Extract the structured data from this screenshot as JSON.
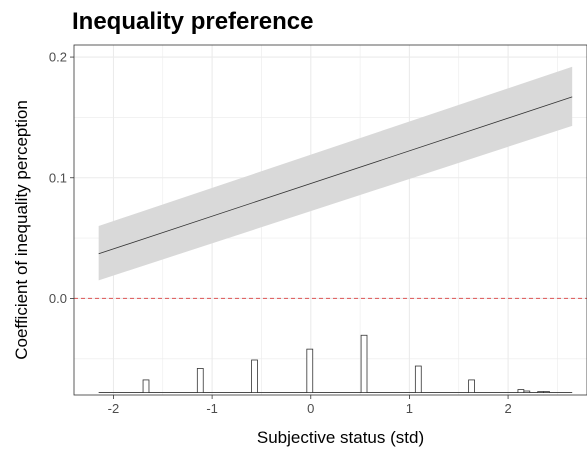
{
  "chart_data": {
    "type": "line",
    "title": "Inequality preference",
    "xlabel": "Subjective status (std)",
    "ylabel": "Coefficient of inequality perception",
    "xlim": [
      -2.4,
      2.8
    ],
    "ylim": [
      -0.08,
      0.21
    ],
    "x_ticks": [
      -2,
      -1,
      0,
      1,
      2
    ],
    "y_ticks": [
      0.0,
      0.1,
      0.2
    ],
    "x_tick_labels": [
      "-2",
      "-1",
      "0",
      "1",
      "2"
    ],
    "y_tick_labels": [
      "0.0",
      "0.1",
      "0.2"
    ],
    "grid": true,
    "series": [
      {
        "x": [
          -2.15,
          2.65
        ],
        "y": [
          0.037,
          0.167
        ],
        "ci_lower": [
          0.015,
          0.143
        ],
        "ci_upper": [
          0.06,
          0.192
        ]
      }
    ],
    "reference_line": {
      "y": 0.0,
      "style": "dashed",
      "color": "#e06666"
    },
    "histogram": {
      "baseline": -0.078,
      "bar_width": 0.06,
      "bars": [
        {
          "x": -1.67,
          "height": 0.0105
        },
        {
          "x": -1.12,
          "height": 0.02
        },
        {
          "x": -0.57,
          "height": 0.027
        },
        {
          "x": -0.01,
          "height": 0.036
        },
        {
          "x": 0.54,
          "height": 0.0475
        },
        {
          "x": 1.09,
          "height": 0.022
        },
        {
          "x": 1.63,
          "height": 0.0105
        },
        {
          "x": 2.13,
          "height": 0.0025
        },
        {
          "x": 2.19,
          "height": 0.0013
        },
        {
          "x": 2.33,
          "height": 0.0008
        },
        {
          "x": 2.39,
          "height": 0.0008
        }
      ],
      "range": [
        -2.15,
        2.65
      ]
    },
    "colors": {
      "ribbon": "#d9d9d9",
      "line": "#333333",
      "grid": "#ebebeb",
      "panel_border": "#333333",
      "histogram": "#333333"
    }
  }
}
